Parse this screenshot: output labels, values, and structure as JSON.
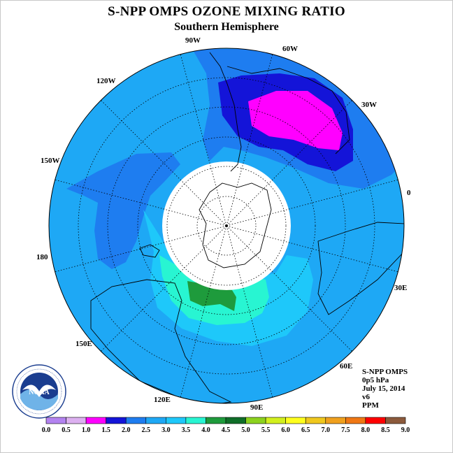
{
  "title": "S-NPP OMPS OZONE MIXING RATIO",
  "subtitle": "Southern Hemisphere",
  "longitude_labels": [
    "90W",
    "60W",
    "120W",
    "30W",
    "150W",
    "0",
    "180",
    "30E",
    "150E",
    "60E",
    "120E",
    "90E"
  ],
  "info": {
    "instrument": "S-NPP OMPS",
    "pressure": "0p5 hPa",
    "date": "July 15, 2014",
    "version": "v6",
    "units": "PPM"
  },
  "logo": {
    "text": "NOAA",
    "ring_text": "NATIONAL OCEANIC AND ATMOSPHERIC ADMINISTRATION · U.S. DEPARTMENT OF COMMERCE"
  },
  "colorbar": {
    "ticks": [
      "0.0",
      "0.5",
      "1.0",
      "1.5",
      "2.0",
      "2.5",
      "3.0",
      "3.5",
      "4.0",
      "4.5",
      "5.0",
      "5.5",
      "6.0",
      "6.5",
      "7.0",
      "7.5",
      "8.0",
      "8.5",
      "9.0"
    ],
    "colors": [
      "#b383f0",
      "#dcb0f0",
      "#ff00ff",
      "#1414d8",
      "#1e7df0",
      "#1ea8f5",
      "#1ec8fa",
      "#28f5d2",
      "#1e9b3c",
      "#0f6e28",
      "#8cd21e",
      "#d2f01e",
      "#ffff1e",
      "#f0c81e",
      "#f0a01e",
      "#f07814",
      "#ff0000",
      "#8c5a3c"
    ]
  },
  "map": {
    "background_color": "#1ea8f5",
    "regions": [
      {
        "name": "ozone-1.5-2.0",
        "color": "#1414d8"
      },
      {
        "name": "ozone-1.0-1.5",
        "color": "#ff00ff"
      },
      {
        "name": "ozone-2.0-2.5",
        "color": "#1e7df0"
      },
      {
        "name": "ozone-3.0-3.5",
        "color": "#1ec8fa"
      },
      {
        "name": "ozone-3.5-4.0",
        "color": "#28f5d2"
      },
      {
        "name": "ozone-4.0-4.5",
        "color": "#1e9b3c"
      }
    ]
  }
}
